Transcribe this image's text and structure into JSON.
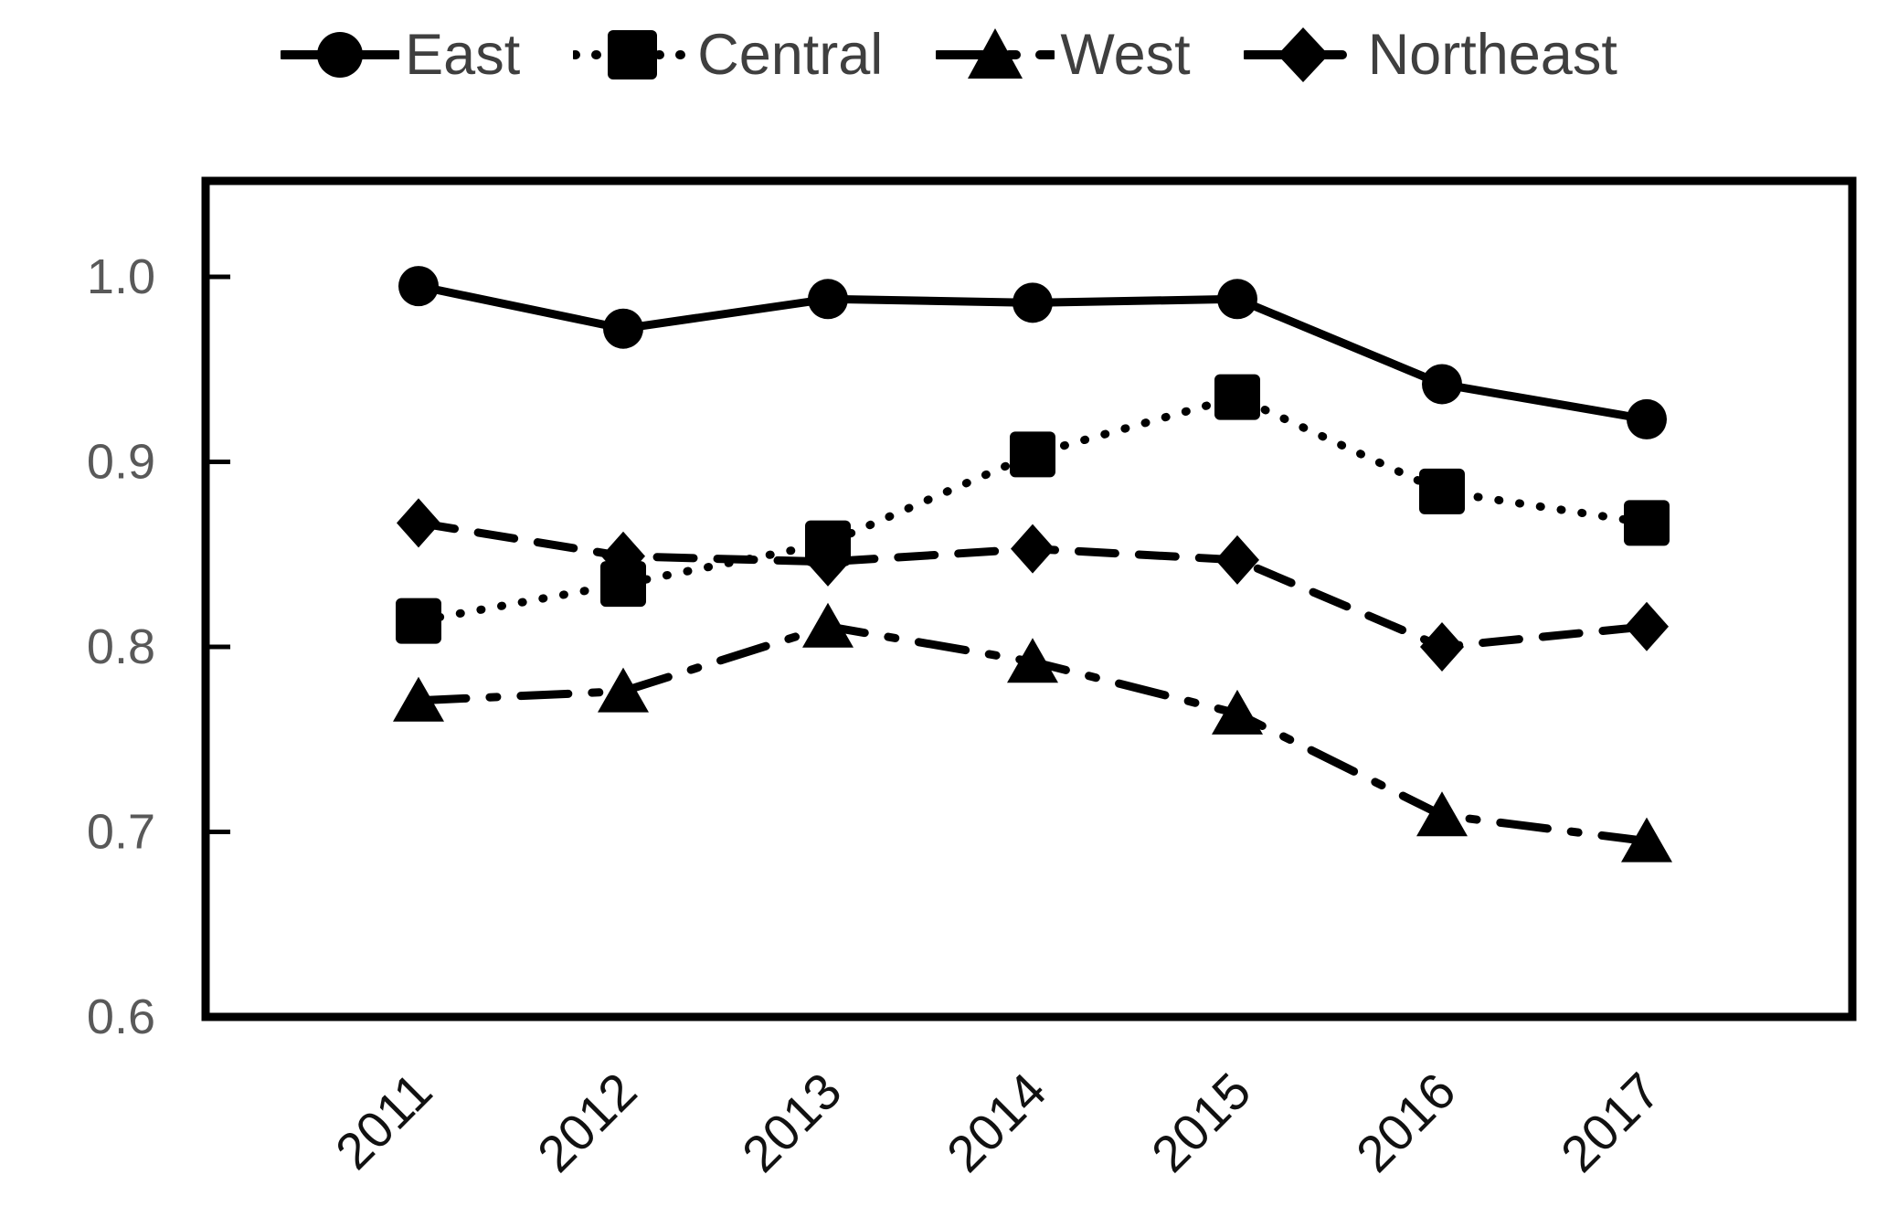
{
  "chart_data": {
    "type": "line",
    "title": "",
    "xlabel": "",
    "ylabel": "",
    "categories": [
      "2011",
      "2012",
      "2013",
      "2014",
      "2015",
      "2016",
      "2017"
    ],
    "series": [
      {
        "name": "East",
        "marker": "circle",
        "line_style": "solid",
        "values": [
          0.995,
          0.972,
          0.988,
          0.986,
          0.988,
          0.942,
          0.923
        ]
      },
      {
        "name": "Central",
        "marker": "square",
        "line_style": "dotted",
        "values": [
          0.814,
          0.834,
          0.856,
          0.904,
          0.935,
          0.884,
          0.867
        ]
      },
      {
        "name": "West",
        "marker": "triangle",
        "line_style": "dashdot",
        "values": [
          0.771,
          0.776,
          0.811,
          0.792,
          0.764,
          0.709,
          0.695
        ]
      },
      {
        "name": "Northeast",
        "marker": "diamond",
        "line_style": "dashed",
        "values": [
          0.867,
          0.849,
          0.846,
          0.853,
          0.847,
          0.8,
          0.811
        ]
      }
    ],
    "y_ticks": [
      "1.0",
      "0.9",
      "0.8",
      "0.7",
      "0.6"
    ],
    "y_tick_values": [
      1.0,
      0.9,
      0.8,
      0.7,
      0.6
    ],
    "ylim": [
      0.6,
      1.052
    ],
    "grid": false,
    "legend_position": "top",
    "colors": {
      "series_color": "#000000",
      "plot_border": "#000000",
      "y_tick_label": "#595959",
      "x_tick_label": "#111111",
      "legend_text": "#3f3f3f",
      "background": "#ffffff"
    }
  }
}
